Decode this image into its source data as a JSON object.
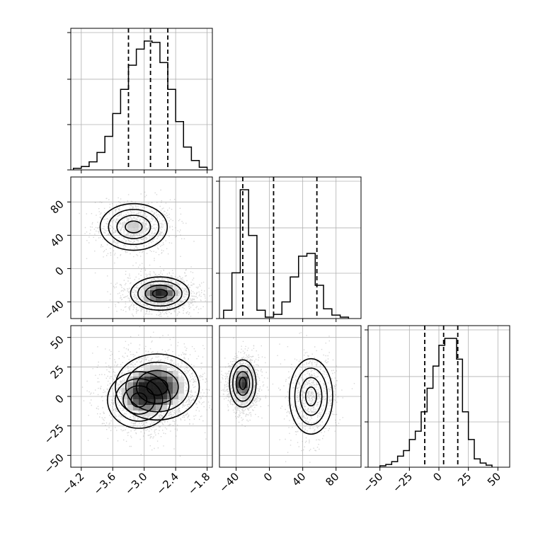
{
  "chart_data": {
    "type": "corner",
    "parameters": [
      {
        "range": [
          -4.4,
          -1.7
        ],
        "ticks": [
          -4.2,
          -3.6,
          -3.0,
          -2.4,
          -1.8
        ],
        "tick_labels": [
          "−4.2",
          "−3.6",
          "−3.0",
          "−2.4",
          "−1.8"
        ],
        "quantiles": [
          -3.3,
          -2.88,
          -2.55
        ],
        "histogram": {
          "bin_edges": [
            -4.35,
            -4.2,
            -4.05,
            -3.9,
            -3.75,
            -3.6,
            -3.45,
            -3.3,
            -3.15,
            -3.0,
            -2.85,
            -2.7,
            -2.55,
            -2.4,
            -2.25,
            -2.1,
            -1.95,
            -1.8
          ],
          "counts": [
            0.012,
            0.025,
            0.06,
            0.13,
            0.25,
            0.42,
            0.6,
            0.78,
            0.9,
            0.96,
            0.95,
            0.8,
            0.6,
            0.36,
            0.17,
            0.07,
            0.02
          ]
        }
      },
      {
        "range": [
          -60,
          110
        ],
        "ticks": [
          -40,
          0,
          40,
          80
        ],
        "tick_labels": [
          "−40",
          "0",
          "40",
          "80"
        ],
        "quantiles": [
          -32,
          5,
          57
        ],
        "histogram": {
          "bin_edges": [
            -55,
            -45,
            -35,
            -25,
            -15,
            -5,
            5,
            15,
            25,
            35,
            45,
            55,
            65,
            75,
            85,
            95
          ],
          "counts": [
            0.06,
            0.33,
            0.93,
            0.6,
            0.06,
            0.01,
            0.03,
            0.12,
            0.3,
            0.45,
            0.47,
            0.24,
            0.07,
            0.025,
            0.01
          ]
        }
      },
      {
        "range": [
          -60,
          60
        ],
        "ticks": [
          -50,
          -25,
          0,
          25,
          50
        ],
        "tick_labels": [
          "−50",
          "−25",
          "0",
          "25",
          "50"
        ],
        "quantiles": [
          -12,
          4,
          16
        ],
        "histogram": {
          "bin_edges": [
            -50,
            -45,
            -40,
            -35,
            -30,
            -25,
            -20,
            -15,
            -10,
            -5,
            0,
            5,
            10,
            15,
            20,
            25,
            30,
            35,
            40,
            45
          ],
          "counts": [
            0.01,
            0.02,
            0.04,
            0.08,
            0.12,
            0.2,
            0.26,
            0.4,
            0.57,
            0.73,
            0.88,
            0.93,
            0.93,
            0.78,
            0.4,
            0.2,
            0.06,
            0.03,
            0.015
          ]
        }
      }
    ],
    "pairs": [
      {
        "x": 0,
        "y": 1,
        "modes": [
          {
            "x": -2.7,
            "y": -30,
            "sx": 0.28,
            "sy": 10,
            "peak": 1.0
          },
          {
            "x": -3.2,
            "y": 50,
            "sx": 0.32,
            "sy": 14,
            "peak": 0.55
          }
        ]
      },
      {
        "x": 0,
        "y": 2,
        "modes": [
          {
            "x": -2.75,
            "y": 8,
            "sx": 0.4,
            "sy": 14,
            "peak": 1.0
          },
          {
            "x": -3.1,
            "y": -3,
            "sx": 0.3,
            "sy": 12,
            "peak": 0.45
          }
        ]
      },
      {
        "x": 1,
        "y": 2,
        "modes": [
          {
            "x": -32,
            "y": 11,
            "sx": 8,
            "sy": 10,
            "peak": 1.0
          },
          {
            "x": 50,
            "y": 0,
            "sx": 13,
            "sy": 16,
            "peak": 0.45
          }
        ]
      }
    ]
  }
}
